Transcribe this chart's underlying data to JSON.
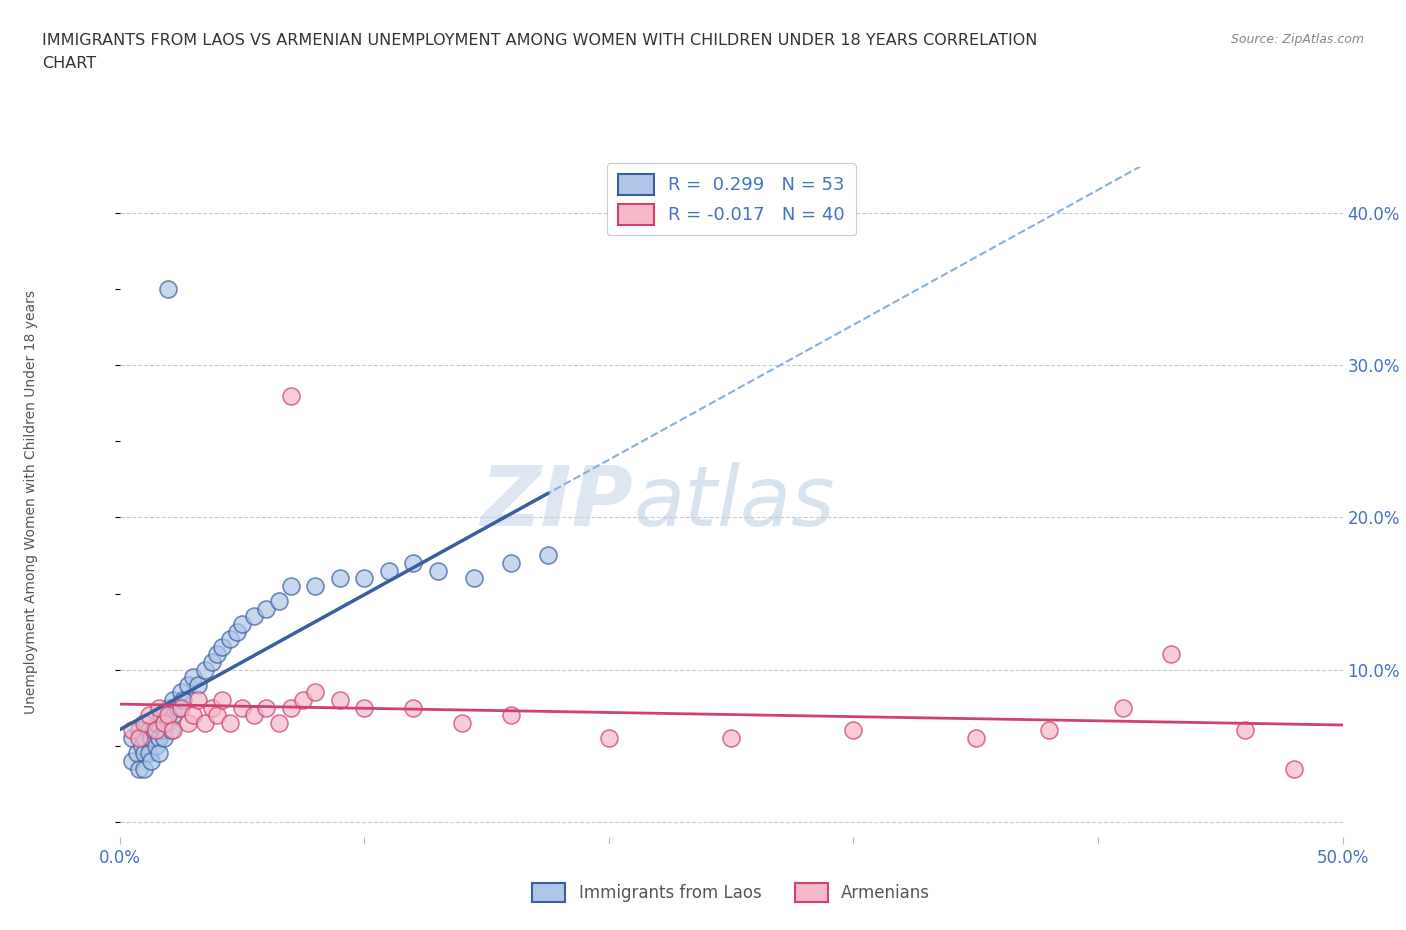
{
  "title_line1": "IMMIGRANTS FROM LAOS VS ARMENIAN UNEMPLOYMENT AMONG WOMEN WITH CHILDREN UNDER 18 YEARS CORRELATION",
  "title_line2": "CHART",
  "source": "Source: ZipAtlas.com",
  "ylabel": "Unemployment Among Women with Children Under 18 years",
  "legend_label1": "Immigrants from Laos",
  "legend_label2": "Armenians",
  "r1": 0.299,
  "n1": 53,
  "r2": -0.017,
  "n2": 40,
  "xlim": [
    0.0,
    0.5
  ],
  "ylim": [
    -0.01,
    0.43
  ],
  "yticks": [
    0.0,
    0.1,
    0.2,
    0.3,
    0.4
  ],
  "ytick_labels": [
    "",
    "10.0%",
    "20.0%",
    "30.0%",
    "40.0%"
  ],
  "xticks": [
    0.0,
    0.1,
    0.2,
    0.3,
    0.4,
    0.5
  ],
  "xtick_labels": [
    "0.0%",
    "",
    "",
    "",
    "",
    "50.0%"
  ],
  "color_laos": "#aec6e8",
  "color_armenian": "#f5b8c8",
  "line_color_laos": "#3a5fa0",
  "line_color_armenian": "#d04070",
  "background_color": "#ffffff",
  "watermark_zip": "ZIP",
  "watermark_atlas": "atlas",
  "laos_x": [
    0.005,
    0.005,
    0.007,
    0.008,
    0.008,
    0.009,
    0.01,
    0.01,
    0.01,
    0.012,
    0.012,
    0.013,
    0.013,
    0.014,
    0.015,
    0.015,
    0.016,
    0.016,
    0.017,
    0.018,
    0.018,
    0.02,
    0.02,
    0.021,
    0.022,
    0.022,
    0.024,
    0.025,
    0.026,
    0.028,
    0.03,
    0.032,
    0.035,
    0.038,
    0.04,
    0.042,
    0.045,
    0.048,
    0.05,
    0.055,
    0.06,
    0.065,
    0.07,
    0.08,
    0.09,
    0.1,
    0.11,
    0.12,
    0.13,
    0.145,
    0.16,
    0.175,
    0.02
  ],
  "laos_y": [
    0.04,
    0.055,
    0.045,
    0.06,
    0.035,
    0.05,
    0.045,
    0.055,
    0.035,
    0.06,
    0.045,
    0.055,
    0.04,
    0.06,
    0.05,
    0.065,
    0.055,
    0.045,
    0.07,
    0.06,
    0.055,
    0.065,
    0.075,
    0.06,
    0.07,
    0.08,
    0.075,
    0.085,
    0.08,
    0.09,
    0.095,
    0.09,
    0.1,
    0.105,
    0.11,
    0.115,
    0.12,
    0.125,
    0.13,
    0.135,
    0.14,
    0.145,
    0.155,
    0.155,
    0.16,
    0.16,
    0.165,
    0.17,
    0.165,
    0.16,
    0.17,
    0.175,
    0.35
  ],
  "armenian_x": [
    0.005,
    0.008,
    0.01,
    0.012,
    0.015,
    0.016,
    0.018,
    0.02,
    0.022,
    0.025,
    0.028,
    0.03,
    0.032,
    0.035,
    0.038,
    0.04,
    0.042,
    0.045,
    0.05,
    0.055,
    0.06,
    0.065,
    0.07,
    0.075,
    0.08,
    0.09,
    0.1,
    0.12,
    0.14,
    0.16,
    0.2,
    0.25,
    0.3,
    0.35,
    0.38,
    0.41,
    0.43,
    0.46,
    0.48,
    0.07
  ],
  "armenian_y": [
    0.06,
    0.055,
    0.065,
    0.07,
    0.06,
    0.075,
    0.065,
    0.07,
    0.06,
    0.075,
    0.065,
    0.07,
    0.08,
    0.065,
    0.075,
    0.07,
    0.08,
    0.065,
    0.075,
    0.07,
    0.075,
    0.065,
    0.075,
    0.08,
    0.085,
    0.08,
    0.075,
    0.075,
    0.065,
    0.07,
    0.055,
    0.055,
    0.06,
    0.055,
    0.06,
    0.075,
    0.11,
    0.06,
    0.035,
    0.28
  ]
}
